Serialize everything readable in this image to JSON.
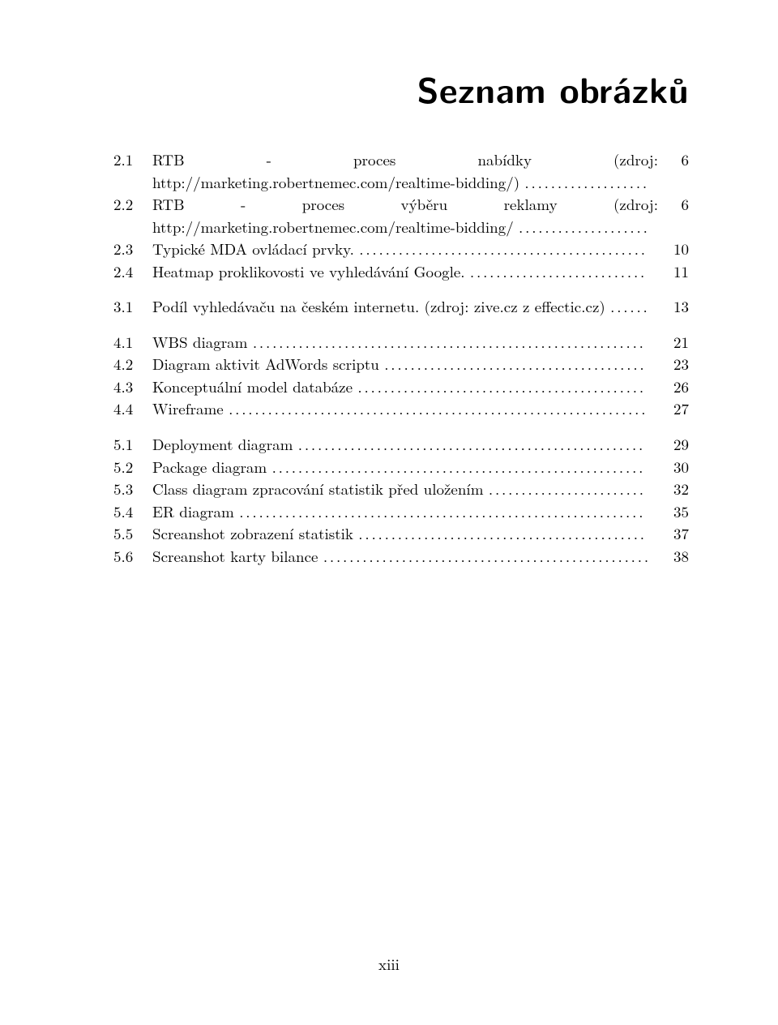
{
  "title": "Seznam obrázků",
  "footer": "xiii",
  "groups": [
    [
      {
        "num": "2.1",
        "text": "RTB - proces nabídky (zdroj: http://marketing.robertnemec.com/realtime-bidding/)",
        "page": "6"
      },
      {
        "num": "2.2",
        "text": "RTB - proces výběru reklamy (zdroj: http://marketing.robertnemec.com/realtime-bidding/",
        "page": "6"
      },
      {
        "num": "2.3",
        "text": "Typické MDA ovládací prvky.",
        "page": "10"
      },
      {
        "num": "2.4",
        "text": "Heatmap proklikovosti ve vyhledávání Google.",
        "page": "11"
      }
    ],
    [
      {
        "num": "3.1",
        "text": "Podíl vyhledávaču na českém internetu. (zdroj: zive.cz z effectic.cz)",
        "page": "13"
      }
    ],
    [
      {
        "num": "4.1",
        "text": "WBS diagram",
        "page": "21"
      },
      {
        "num": "4.2",
        "text": "Diagram aktivit AdWords scriptu",
        "page": "23"
      },
      {
        "num": "4.3",
        "text": "Konceptuální model databáze",
        "page": "26"
      },
      {
        "num": "4.4",
        "text": "Wireframe",
        "page": "27"
      }
    ],
    [
      {
        "num": "5.1",
        "text": "Deployment diagram",
        "page": "29"
      },
      {
        "num": "5.2",
        "text": "Package diagram",
        "page": "30"
      },
      {
        "num": "5.3",
        "text": "Class diagram zpracování statistik před uložením",
        "page": "32"
      },
      {
        "num": "5.4",
        "text": "ER diagram",
        "page": "35"
      },
      {
        "num": "5.5",
        "text": "Screanshot zobrazení statistik",
        "page": "37"
      },
      {
        "num": "5.6",
        "text": "Screanshot karty bilance",
        "page": "38"
      }
    ]
  ]
}
